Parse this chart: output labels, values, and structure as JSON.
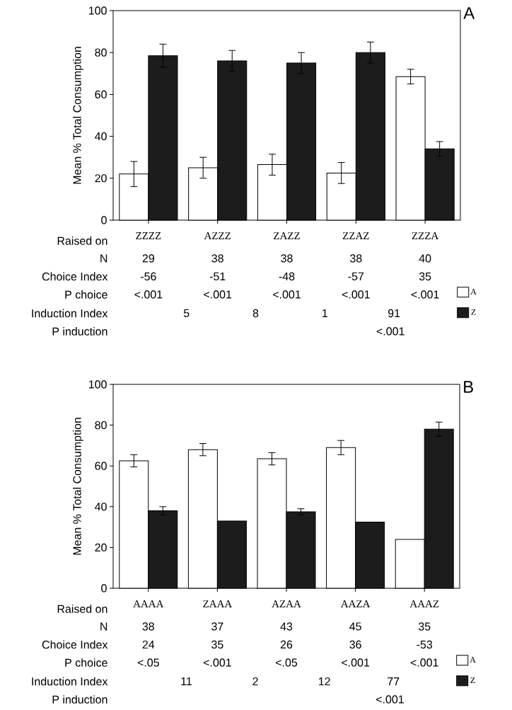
{
  "chart_data": [
    {
      "type": "bar",
      "title": "A",
      "ylabel": "Mean % Total Consumption",
      "xlabel": "Raised on",
      "categories": [
        "ZZZZ",
        "AZZZ",
        "ZAZZ",
        "ZZAZ",
        "ZZZA"
      ],
      "series": [
        {
          "name": "A",
          "color": "#ffffff",
          "values": [
            22,
            25,
            26.5,
            22.5,
            68.5
          ],
          "errors": [
            6,
            5,
            5,
            5,
            3.5
          ]
        },
        {
          "name": "Z",
          "color": "#1c1c1c",
          "values": [
            78.5,
            76,
            75,
            80,
            34
          ],
          "errors": [
            5.5,
            5,
            5,
            5,
            3.5
          ]
        }
      ],
      "ylim": [
        0,
        100
      ],
      "yticks": [
        0,
        20,
        40,
        60,
        80,
        100
      ],
      "legend": "bottom right",
      "annotations": [
        "N",
        "29",
        "38",
        "38",
        "38",
        "40",
        "Choice Index",
        "-56",
        "-51",
        "-48",
        "-57",
        "35",
        "P choice",
        "<.001",
        "<.001",
        "<.001",
        "<.001",
        "<.001",
        "Induction Index",
        "5",
        "8",
        "1",
        "91",
        "P induction",
        "<.001"
      ]
    },
    {
      "type": "bar",
      "title": "B",
      "ylabel": "Mean % Total Consumption",
      "xlabel": "Raised on",
      "categories": [
        "AAAA",
        "ZAAA",
        "AZAA",
        "AAZA",
        "AAAZ"
      ],
      "series": [
        {
          "name": "A",
          "color": "#ffffff",
          "values": [
            62.5,
            68,
            63.5,
            69,
            24
          ],
          "errors": [
            3,
            3,
            3,
            3.5,
            null
          ]
        },
        {
          "name": "Z",
          "color": "#1c1c1c",
          "values": [
            38,
            33,
            37.5,
            32.5,
            78
          ],
          "errors": [
            2,
            null,
            1.5,
            null,
            3.5
          ]
        }
      ],
      "ylim": [
        0,
        100
      ],
      "yticks": [
        0,
        20,
        40,
        60,
        80,
        100
      ],
      "legend": "bottom right",
      "annotations": [
        "N",
        "38",
        "37",
        "43",
        "45",
        "35",
        "Choice Index",
        "24",
        "35",
        "26",
        "36",
        "-53",
        "P choice",
        "<.05",
        "<.001",
        "<.05",
        "<.001",
        "<.001",
        "Induction Index",
        "11",
        "2",
        "12",
        "77",
        "P induction",
        "<.001"
      ]
    }
  ]
}
